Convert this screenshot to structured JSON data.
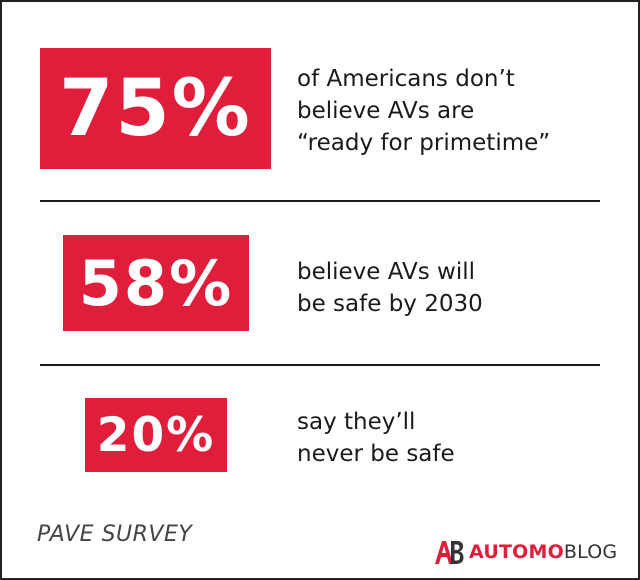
{
  "chart_data": {
    "type": "table",
    "items": [
      {
        "value": 75,
        "label": "75%",
        "text": "of Americans don’t\nbelieve AVs are\n“ready for primetime”"
      },
      {
        "value": 58,
        "label": "58%",
        "text": "believe AVs will\nbe safe by 2030"
      },
      {
        "value": 20,
        "label": "20%",
        "text": "say they’ll\nnever be safe"
      }
    ],
    "source": "PAVE SURVEY"
  },
  "brand": {
    "mark_letters": "AB",
    "name_part1": "AUTOMO",
    "name_part2": "BLOG"
  },
  "colors": {
    "accent": "#e01e3c",
    "text": "#1a1a1a",
    "background": "#ffffff"
  }
}
